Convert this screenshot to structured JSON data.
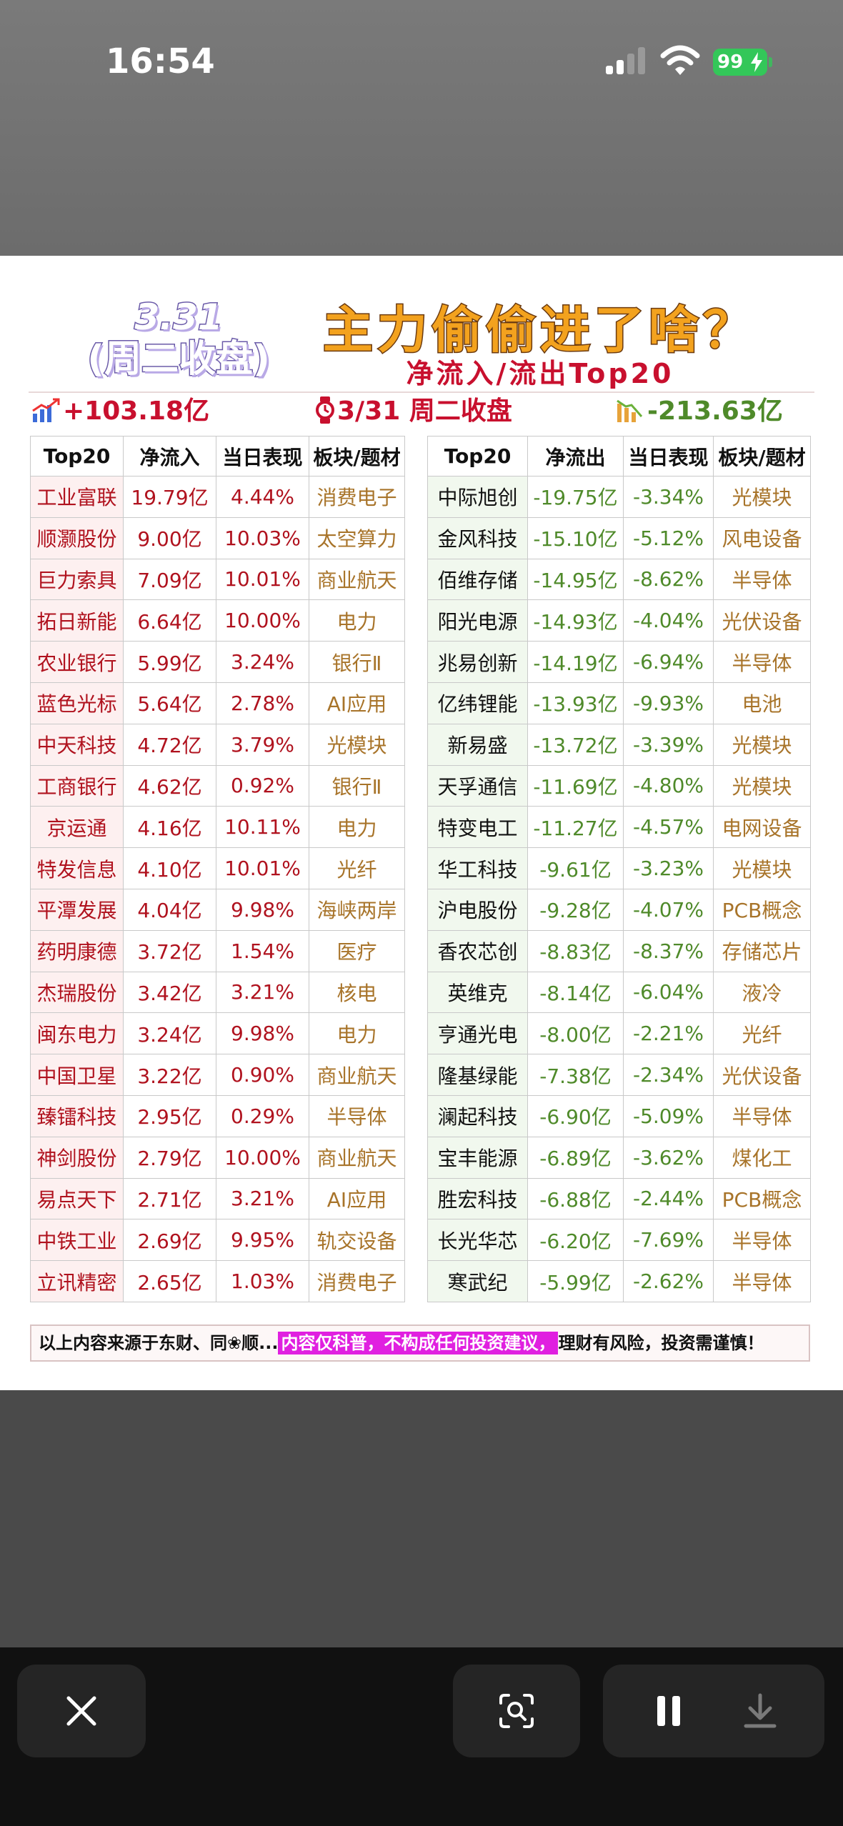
{
  "status_bar": {
    "time": "16:54",
    "battery": "99",
    "icons": [
      "cellular-signal-icon",
      "wifi-icon",
      "battery-charging-icon"
    ]
  },
  "poster": {
    "date": "3.31",
    "weekday": "(周二收盘)",
    "title": "主力偷偷进了啥？",
    "subtitle": "净流入/流出Top20",
    "total_inflow": "+103.18亿",
    "close_label": "3/31 周二收盘",
    "total_outflow": "-213.63亿",
    "inflow_table": {
      "headers": [
        "Top20",
        "净流入",
        "当日表现",
        "板块/题材"
      ],
      "rows": [
        [
          "工业富联",
          "19.79亿",
          "4.44%",
          "消费电子"
        ],
        [
          "顺灏股份",
          "9.00亿",
          "10.03%",
          "太空算力"
        ],
        [
          "巨力索具",
          "7.09亿",
          "10.01%",
          "商业航天"
        ],
        [
          "拓日新能",
          "6.64亿",
          "10.00%",
          "电力"
        ],
        [
          "农业银行",
          "5.99亿",
          "3.24%",
          "银行Ⅱ"
        ],
        [
          "蓝色光标",
          "5.64亿",
          "2.78%",
          "AI应用"
        ],
        [
          "中天科技",
          "4.72亿",
          "3.79%",
          "光模块"
        ],
        [
          "工商银行",
          "4.62亿",
          "0.92%",
          "银行Ⅱ"
        ],
        [
          "京运通",
          "4.16亿",
          "10.11%",
          "电力"
        ],
        [
          "特发信息",
          "4.10亿",
          "10.01%",
          "光纤"
        ],
        [
          "平潭发展",
          "4.04亿",
          "9.98%",
          "海峡两岸"
        ],
        [
          "药明康德",
          "3.72亿",
          "1.54%",
          "医疗"
        ],
        [
          "杰瑞股份",
          "3.42亿",
          "3.21%",
          "核电"
        ],
        [
          "闽东电力",
          "3.24亿",
          "9.98%",
          "电力"
        ],
        [
          "中国卫星",
          "3.22亿",
          "0.90%",
          "商业航天"
        ],
        [
          "臻镭科技",
          "2.95亿",
          "0.29%",
          "半导体"
        ],
        [
          "神剑股份",
          "2.79亿",
          "10.00%",
          "商业航天"
        ],
        [
          "易点天下",
          "2.71亿",
          "3.21%",
          "AI应用"
        ],
        [
          "中铁工业",
          "2.69亿",
          "9.95%",
          "轨交设备"
        ],
        [
          "立讯精密",
          "2.65亿",
          "1.03%",
          "消费电子"
        ]
      ]
    },
    "outflow_table": {
      "headers": [
        "Top20",
        "净流出",
        "当日表现",
        "板块/题材"
      ],
      "rows": [
        [
          "中际旭创",
          "-19.75亿",
          "-3.34%",
          "光模块"
        ],
        [
          "金风科技",
          "-15.10亿",
          "-5.12%",
          "风电设备"
        ],
        [
          "佰维存储",
          "-14.95亿",
          "-8.62%",
          "半导体"
        ],
        [
          "阳光电源",
          "-14.93亿",
          "-4.04%",
          "光伏设备"
        ],
        [
          "兆易创新",
          "-14.19亿",
          "-6.94%",
          "半导体"
        ],
        [
          "亿纬锂能",
          "-13.93亿",
          "-9.93%",
          "电池"
        ],
        [
          "新易盛",
          "-13.72亿",
          "-3.39%",
          "光模块"
        ],
        [
          "天孚通信",
          "-11.69亿",
          "-4.80%",
          "光模块"
        ],
        [
          "特变电工",
          "-11.27亿",
          "-4.57%",
          "电网设备"
        ],
        [
          "华工科技",
          "-9.61亿",
          "-3.23%",
          "光模块"
        ],
        [
          "沪电股份",
          "-9.28亿",
          "-4.07%",
          "PCB概念"
        ],
        [
          "香农芯创",
          "-8.83亿",
          "-8.37%",
          "存储芯片"
        ],
        [
          "英维克",
          "-8.14亿",
          "-6.04%",
          "液冷"
        ],
        [
          "亨通光电",
          "-8.00亿",
          "-2.21%",
          "光纤"
        ],
        [
          "隆基绿能",
          "-7.38亿",
          "-2.34%",
          "光伏设备"
        ],
        [
          "澜起科技",
          "-6.90亿",
          "-5.09%",
          "半导体"
        ],
        [
          "宝丰能源",
          "-6.89亿",
          "-3.62%",
          "煤化工"
        ],
        [
          "胜宏科技",
          "-6.88亿",
          "-2.44%",
          "PCB概念"
        ],
        [
          "长光华芯",
          "-6.20亿",
          "-7.69%",
          "半导体"
        ],
        [
          "寒武纪",
          "-5.99亿",
          "-2.62%",
          "半导体"
        ]
      ]
    },
    "disclaimer_start": "以上内容来源于东财、同❀顺...",
    "disclaimer_highlight": "内容仅科普，不构成任何投资建议，",
    "disclaimer_end": "理财有风险，投资需谨慎！"
  },
  "toolbar": {
    "icons": [
      "close-icon",
      "visual-lookup-icon",
      "pause-icon",
      "download-icon"
    ]
  }
}
